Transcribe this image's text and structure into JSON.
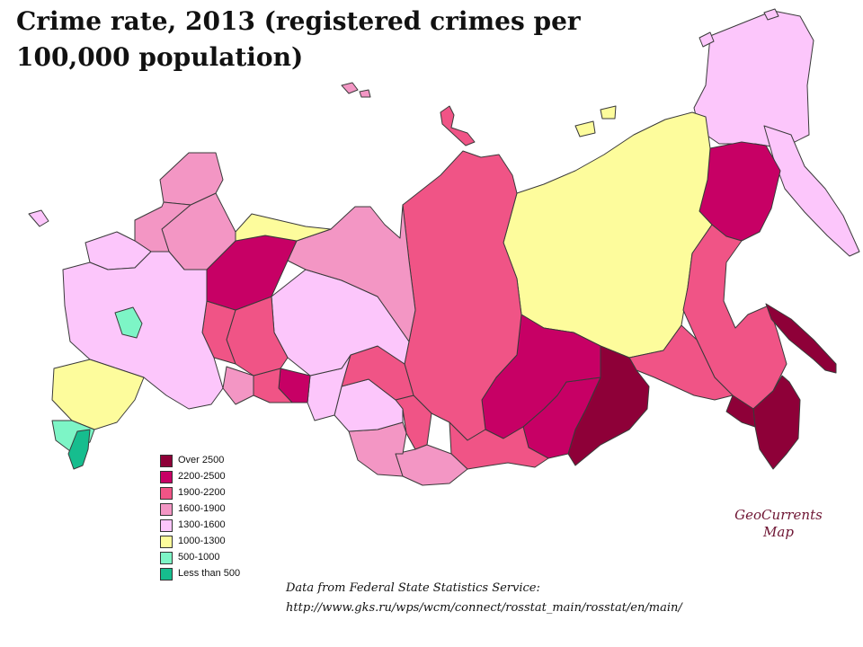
{
  "title": {
    "line1": "Crime rate, 2013 (registered crimes per",
    "line2": "100,000 population)"
  },
  "legend": [
    {
      "label": "Over  2500",
      "color": "#8e0038"
    },
    {
      "label": "2200-2500",
      "color": "#c70065"
    },
    {
      "label": "1900-2200",
      "color": "#f05486"
    },
    {
      "label": "1600-1900",
      "color": "#f396c4"
    },
    {
      "label": "1300-1600",
      "color": "#fcc6fb"
    },
    {
      "label": "1000-1300",
      "color": "#fdfc9c"
    },
    {
      "label": "500-1000",
      "color": "#7df5c6"
    },
    {
      "label": "Less than 500",
      "color": "#16bd8e"
    }
  ],
  "regions": [
    {
      "name": "chukotka",
      "band": "1300-1600"
    },
    {
      "name": "magadan",
      "band": "2200-2500"
    },
    {
      "name": "kamchatka",
      "band": "1300-1600"
    },
    {
      "name": "sakha-yakutia",
      "band": "1000-1300"
    },
    {
      "name": "khabarovsk",
      "band": "1900-2200"
    },
    {
      "name": "sakhalin",
      "band": "Over  2500"
    },
    {
      "name": "jewish-ao",
      "band": "Over  2500"
    },
    {
      "name": "amur",
      "band": "1900-2200"
    },
    {
      "name": "primorsky",
      "band": "Over  2500"
    },
    {
      "name": "zabaykalsky",
      "band": "Over  2500"
    },
    {
      "name": "buryatia",
      "band": "2200-2500"
    },
    {
      "name": "irkutsk",
      "band": "2200-2500"
    },
    {
      "name": "krasnoyarsk",
      "band": "1900-2200"
    },
    {
      "name": "tyva",
      "band": "1900-2200"
    },
    {
      "name": "khakassia",
      "band": "2200-2500"
    },
    {
      "name": "altai-republic",
      "band": "1600-1900"
    },
    {
      "name": "altai-krai",
      "band": "1600-1900"
    },
    {
      "name": "kemerovo",
      "band": "1900-2200"
    },
    {
      "name": "novosibirsk",
      "band": "1300-1600"
    },
    {
      "name": "omsk",
      "band": "1300-1600"
    },
    {
      "name": "tomsk",
      "band": "1900-2200"
    },
    {
      "name": "khanty-mansi",
      "band": "1300-1600"
    },
    {
      "name": "yamalo-nenets",
      "band": "1600-1900"
    },
    {
      "name": "tyumen",
      "band": "2200-2500"
    },
    {
      "name": "kurgan",
      "band": "1900-2200"
    },
    {
      "name": "sverdlovsk",
      "band": "1900-2200"
    },
    {
      "name": "chelyabinsk",
      "band": "1600-1900"
    },
    {
      "name": "perm",
      "band": "1900-2200"
    },
    {
      "name": "komi",
      "band": "2200-2500"
    },
    {
      "name": "nenets",
      "band": "1000-1300"
    },
    {
      "name": "arkhangelsk",
      "band": "1600-1900"
    },
    {
      "name": "murmansk",
      "band": "1600-1900"
    },
    {
      "name": "karelia",
      "band": "1600-1900"
    },
    {
      "name": "leningrad",
      "band": "1300-1600"
    },
    {
      "name": "kaliningrad",
      "band": "1300-1600"
    },
    {
      "name": "moscow",
      "band": "500-1000"
    },
    {
      "name": "dagestan",
      "band": "Less than 500"
    },
    {
      "name": "novaya-zemlya",
      "band": "1900-2200"
    },
    {
      "name": "franz-josef-land",
      "band": "1600-1900"
    },
    {
      "name": "new-siberian-islands",
      "band": "1000-1300"
    },
    {
      "name": "wrangel-island",
      "band": "1300-1600"
    }
  ],
  "watermark": {
    "line1": "GeoCurrents",
    "line2": "Map"
  },
  "source": {
    "line1": "Data from Federal State Statistics Service:",
    "line2": "http://www.gks.ru/wps/wcm/connect/rosstat_main/rosstat/en/main/"
  }
}
